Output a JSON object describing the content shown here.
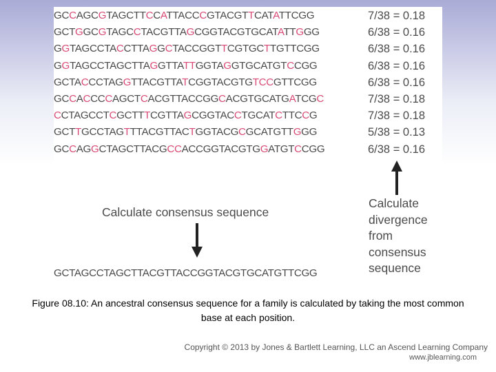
{
  "colors": {
    "match": "#4a4a4a",
    "mismatch": "#d84a74",
    "background_top": "#a9abd6",
    "background_bottom": "#ffffff"
  },
  "figure": {
    "sequences": [
      "GCCAGCGTAGCTTCCATTACCCGTACGTTCATATTCGG",
      "GCTGGCGTAGCCTACGTTAGCGGTACGTGCATATTGGG",
      "GGTAGCCTACCTTAGGCTACCGGTTCGTGCTTGTTCGG",
      "GGTAGCCTAGCTTAGGTTATTGGTAGGTGCATGTCCGG",
      "GCTACCCTAGGTTACGTTATCGGTACGTGTCCGTTCGG",
      "GCCACCCCAGCTCACGTTACCGGCACGTGCATGATCGC",
      "CCTAGCCTCGCTTTCGTTAGCGGTACCTGCATCTTCCG",
      "GCTTGCCTAGTTTACGTTACTGGTACGCGCATGTTGGG",
      "GCCAGGCTAGCTTACGCCACCGGTACGTGGATGTCCGG"
    ],
    "divergence": [
      "7/38 = 0.18",
      "6/38 = 0.16",
      "6/38 = 0.16",
      "6/38 = 0.16",
      "6/38 = 0.16",
      "7/38 = 0.18",
      "7/38 = 0.18",
      "5/38 = 0.13",
      "6/38 = 0.16"
    ],
    "calc_consensus_label": "Calculate consensus sequence",
    "calc_divergence_lines": [
      "Calculate",
      "divergence",
      "from",
      "consensus",
      "sequence"
    ],
    "consensus_sequence": "GCTAGCCTAGCTTACGTTACCGGTACGTGCATGTTCGG"
  },
  "caption": "Figure 08.10: An ancestral consensus sequence for a family is calculated by taking the most common base at each position.",
  "copyright": "Copyright © 2013 by Jones & Bartlett Learning, LLC an Ascend Learning Company",
  "website": "www.jblearning.com"
}
